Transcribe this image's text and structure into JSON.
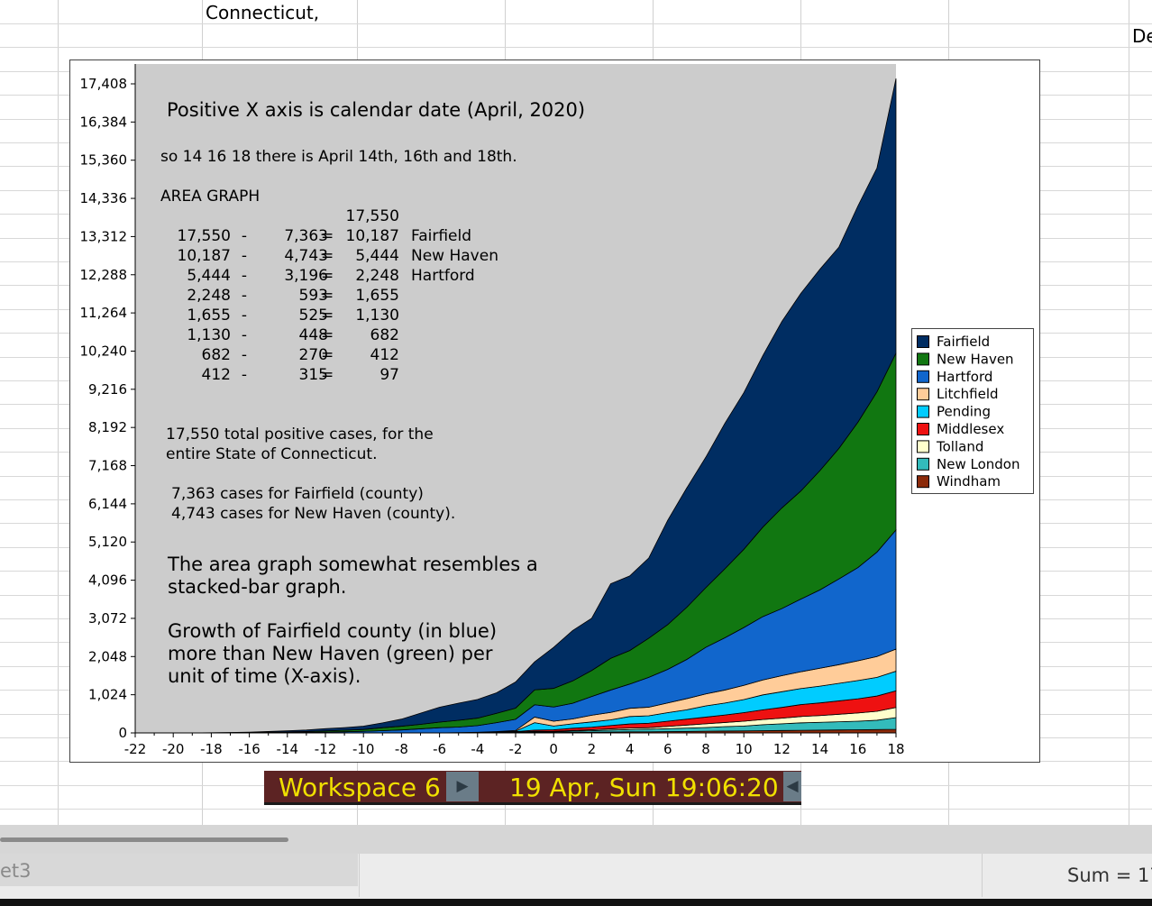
{
  "sheet": {
    "cell_texts": [
      "Connecticut,",
      "De"
    ],
    "tab_name": "et3",
    "status_sum": "Sum = 17"
  },
  "taskbar": {
    "workspace_label": "Workspace 6",
    "clock_label": "19 Apr, Sun 19:06:20",
    "right_arrow": "▶",
    "left_arrow": "◀"
  },
  "annotations": {
    "line1": "Positive X axis is calendar date (April, 2020)",
    "line2": "so 14 16 18 there is April 14th, 16th and 18th.",
    "line3": "AREA GRAPH",
    "table": [
      {
        "a": "",
        "b": "",
        "c": "17,550",
        "label": ""
      },
      {
        "a": "17,550",
        "b": "7,363",
        "c": "10,187",
        "label": "Fairfield"
      },
      {
        "a": "10,187",
        "b": "4,743",
        "c": "5,444",
        "label": "New Haven"
      },
      {
        "a": "5,444",
        "b": "3,196",
        "c": "2,248",
        "label": "Hartford"
      },
      {
        "a": "2,248",
        "b": "593",
        "c": "1,655",
        "label": ""
      },
      {
        "a": "1,655",
        "b": "525",
        "c": "1,130",
        "label": ""
      },
      {
        "a": "1,130",
        "b": "448",
        "c": "682",
        "label": ""
      },
      {
        "a": "682",
        "b": "270",
        "c": "412",
        "label": ""
      },
      {
        "a": "412",
        "b": "315",
        "c": "97",
        "label": ""
      }
    ],
    "total_line1": "17,550 total positive cases, for the",
    "total_line2": "entire State of Connecticut.",
    "county_line1": "7,363 cases for Fairfield (county)",
    "county_line2": "4,743 cases for New Haven (county).",
    "resemble_line1": "The area graph somewhat resembles a",
    "resemble_line2": "stacked-bar graph.",
    "growth_line1": "Growth of Fairfield county (in blue)",
    "growth_line2": "more than New Haven (green) per",
    "growth_line3": "unit of time (X-axis)."
  },
  "chart_data": {
    "type": "area",
    "stacked": true,
    "x": [
      -22,
      -21,
      -20,
      -19,
      -18,
      -17,
      -16,
      -15,
      -14,
      -13,
      -12,
      -11,
      -10,
      -9,
      -8,
      -7,
      -6,
      -5,
      -4,
      -3,
      -2,
      -1,
      0,
      1,
      2,
      3,
      4,
      5,
      6,
      7,
      8,
      9,
      10,
      11,
      12,
      13,
      14,
      15,
      16,
      17,
      18
    ],
    "xlim": [
      -22,
      18
    ],
    "ylim": [
      0,
      17408
    ],
    "x_ticks": [
      -22,
      -20,
      -18,
      -16,
      -14,
      -12,
      -10,
      -8,
      -6,
      -4,
      -2,
      0,
      2,
      4,
      6,
      8,
      10,
      12,
      14,
      16,
      18
    ],
    "y_ticks": [
      0,
      1024,
      2048,
      3072,
      4096,
      5120,
      6144,
      7168,
      8192,
      9216,
      10240,
      11264,
      12288,
      13312,
      14336,
      15360,
      16384,
      17408
    ],
    "y_tick_labels": [
      "0",
      "1,024",
      "2,048",
      "3,072",
      "4,096",
      "5,120",
      "6,144",
      "7,168",
      "8,192",
      "9,216",
      "10,240",
      "11,264",
      "12,288",
      "13,312",
      "14,336",
      "15,360",
      "16,384",
      "17,408"
    ],
    "legend_position": "right",
    "grid": false,
    "background": "#cccccc",
    "series": [
      {
        "name": "Windham",
        "color": "#8b2a0a",
        "values": [
          0,
          0,
          0,
          0,
          0,
          0,
          0,
          0,
          0,
          0,
          0,
          0,
          0,
          0,
          0,
          0,
          0,
          1,
          2,
          3,
          5,
          10,
          10,
          15,
          20,
          25,
          30,
          30,
          35,
          40,
          45,
          50,
          55,
          60,
          65,
          70,
          75,
          80,
          85,
          90,
          97
        ]
      },
      {
        "name": "New London",
        "color": "#33bbbb",
        "values": [
          0,
          0,
          0,
          0,
          0,
          0,
          0,
          0,
          0,
          0,
          0,
          0,
          0,
          0,
          0,
          0,
          0,
          2,
          4,
          6,
          10,
          20,
          20,
          30,
          40,
          50,
          60,
          70,
          80,
          90,
          100,
          120,
          130,
          160,
          180,
          200,
          210,
          220,
          230,
          250,
          315
        ]
      },
      {
        "name": "Tolland",
        "color": "#ffffcc",
        "values": [
          0,
          0,
          0,
          0,
          0,
          0,
          0,
          0,
          0,
          0,
          0,
          0,
          0,
          0,
          0,
          0,
          0,
          1,
          2,
          4,
          6,
          15,
          15,
          20,
          25,
          35,
          40,
          40,
          60,
          80,
          100,
          110,
          130,
          140,
          150,
          170,
          180,
          200,
          220,
          240,
          270
        ]
      },
      {
        "name": "Middlesex",
        "color": "#ee1111",
        "values": [
          0,
          0,
          0,
          0,
          0,
          0,
          0,
          0,
          0,
          0,
          0,
          0,
          0,
          0,
          0,
          0,
          0,
          2,
          4,
          8,
          15,
          30,
          40,
          60,
          70,
          90,
          110,
          120,
          140,
          160,
          180,
          200,
          230,
          260,
          290,
          320,
          340,
          360,
          380,
          410,
          448
        ]
      },
      {
        "name": "Pending",
        "color": "#00ccff",
        "values": [
          0,
          0,
          0,
          0,
          0,
          0,
          0,
          0,
          0,
          0,
          0,
          0,
          0,
          0,
          0,
          0,
          0,
          0,
          0,
          5,
          10,
          200,
          100,
          120,
          140,
          150,
          200,
          200,
          230,
          250,
          300,
          320,
          350,
          400,
          420,
          430,
          450,
          470,
          490,
          500,
          525
        ]
      },
      {
        "name": "Litchfield",
        "color": "#ffcc99",
        "values": [
          0,
          0,
          0,
          0,
          0,
          0,
          0,
          0,
          0,
          0,
          0,
          0,
          0,
          0,
          0,
          0,
          0,
          2,
          5,
          10,
          20,
          150,
          130,
          130,
          180,
          200,
          220,
          230,
          260,
          300,
          320,
          350,
          380,
          400,
          430,
          450,
          480,
          500,
          530,
          560,
          593
        ]
      },
      {
        "name": "Hartford",
        "color": "#1166cc",
        "values": [
          0,
          0,
          0,
          0,
          1,
          2,
          5,
          8,
          12,
          18,
          25,
          32,
          42,
          60,
          80,
          110,
          140,
          150,
          180,
          240,
          300,
          330,
          380,
          420,
          500,
          600,
          650,
          800,
          900,
          1050,
          1250,
          1400,
          1550,
          1700,
          1800,
          1950,
          2100,
          2300,
          2500,
          2800,
          3196
        ]
      },
      {
        "name": "New Haven",
        "color": "#117711",
        "values": [
          0,
          0,
          0,
          0,
          2,
          4,
          6,
          10,
          15,
          20,
          30,
          40,
          50,
          80,
          100,
          120,
          150,
          180,
          200,
          250,
          300,
          400,
          500,
          600,
          700,
          850,
          900,
          1050,
          1200,
          1400,
          1600,
          1850,
          2100,
          2400,
          2700,
          2900,
          3200,
          3500,
          3900,
          4300,
          4743
        ]
      },
      {
        "name": "Fairfield",
        "color": "#002d62",
        "values": [
          0,
          0,
          0,
          0,
          2,
          5,
          10,
          20,
          30,
          40,
          60,
          70,
          90,
          130,
          190,
          300,
          400,
          460,
          500,
          550,
          700,
          750,
          1100,
          1350,
          1400,
          2000,
          2000,
          2150,
          2800,
          3200,
          3500,
          3900,
          4200,
          4600,
          5000,
          5300,
          5400,
          5400,
          5800,
          6000,
          7363
        ]
      }
    ]
  },
  "legend_order": [
    "Fairfield",
    "New Haven",
    "Hartford",
    "Litchfield",
    "Pending",
    "Middlesex",
    "Tolland",
    "New London",
    "Windham"
  ]
}
